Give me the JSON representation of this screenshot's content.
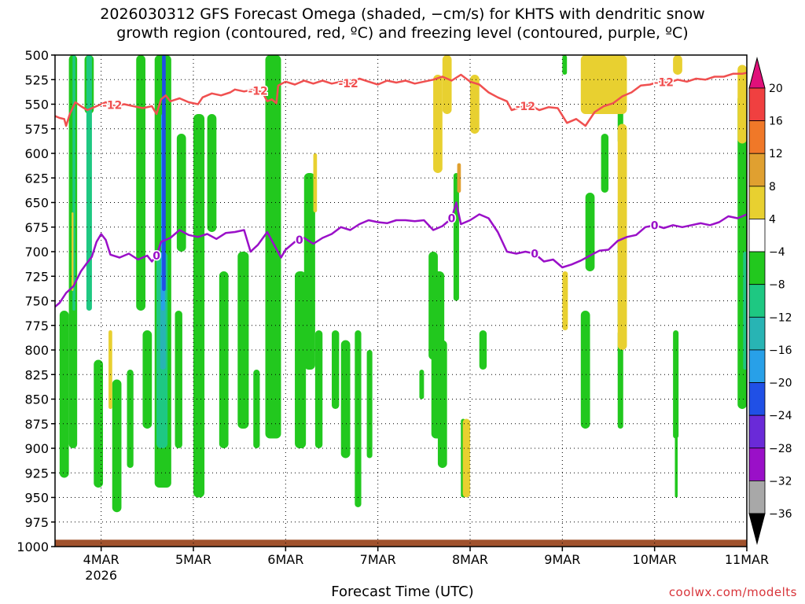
{
  "title_line1": "2026030312 GFS Forecast Omega (shaded, −cm/s) for KHTS with dendritic snow",
  "title_line2": "growth region (contoured, red, ºC) and freezing level (contoured, purple, ºC)",
  "credit": "coolwx.com/modelts",
  "chart_data": {
    "type": "heatmap",
    "title": "2026030312 GFS Forecast Omega (shaded, −cm/s) for KHTS with dendritic snow growth region (contoured, red, ºC) and freezing level (contoured, purple, ºC)",
    "xlabel": "Forecast Time (UTC)",
    "ylabel": "",
    "x_ticks": [
      "4MAR",
      "5MAR",
      "6MAR",
      "7MAR",
      "8MAR",
      "9MAR",
      "10MAR",
      "11MAR"
    ],
    "x_tick_sublabel": "2026",
    "x_range_days": [
      3.5,
      11.0
    ],
    "y_ticks": [
      500,
      525,
      550,
      575,
      600,
      625,
      650,
      675,
      700,
      725,
      750,
      775,
      800,
      825,
      850,
      875,
      900,
      925,
      950,
      975,
      1000
    ],
    "y_range": [
      500,
      1000
    ],
    "y_inverted": true,
    "grid": true,
    "colorbar": {
      "labels": [
        "20",
        "16",
        "12",
        "8",
        "4",
        "−4",
        "−8",
        "−12",
        "−16",
        "−20",
        "−24",
        "−28",
        "−32",
        "−36"
      ],
      "colors": [
        "#f04040",
        "#f07828",
        "#e0a030",
        "#e8d030",
        "#ffffff",
        "#22c81e",
        "#1ec882",
        "#28b4b4",
        "#28a0e8",
        "#2050e6",
        "#6a2ad8",
        "#9a10c8",
        "#a8a8a8"
      ],
      "top_arrow_color": "#e0107a",
      "bottom_arrow_color": "#000000"
    },
    "dgz_label": "-12",
    "dgz_color": "#f05050",
    "freezing_label": "0",
    "freezing_color": "#9a10c8",
    "ground_color": "#a0522d",
    "dgz_line": [
      [
        3.5,
        562
      ],
      [
        3.55,
        564
      ],
      [
        3.6,
        565
      ],
      [
        3.62,
        572
      ],
      [
        3.66,
        560
      ],
      [
        3.72,
        548
      ],
      [
        3.78,
        552
      ],
      [
        3.85,
        556
      ],
      [
        3.95,
        552
      ],
      [
        4.05,
        548
      ],
      [
        4.15,
        552
      ],
      [
        4.25,
        550
      ],
      [
        4.35,
        552
      ],
      [
        4.45,
        554
      ],
      [
        4.55,
        552
      ],
      [
        4.6,
        560
      ],
      [
        4.65,
        545
      ],
      [
        4.7,
        541
      ],
      [
        4.75,
        547
      ],
      [
        4.85,
        544
      ],
      [
        4.95,
        548
      ],
      [
        5.05,
        550
      ],
      [
        5.1,
        543
      ],
      [
        5.2,
        539
      ],
      [
        5.3,
        541
      ],
      [
        5.4,
        538
      ],
      [
        5.45,
        535
      ],
      [
        5.55,
        537
      ],
      [
        5.65,
        535
      ],
      [
        5.75,
        538
      ],
      [
        5.8,
        547
      ],
      [
        5.85,
        545
      ],
      [
        5.9,
        549
      ],
      [
        5.92,
        531
      ],
      [
        6.0,
        527
      ],
      [
        6.1,
        530
      ],
      [
        6.2,
        526
      ],
      [
        6.3,
        529
      ],
      [
        6.4,
        526
      ],
      [
        6.5,
        529
      ],
      [
        6.6,
        527
      ],
      [
        6.7,
        529
      ],
      [
        6.8,
        524
      ],
      [
        6.9,
        527
      ],
      [
        7.0,
        530
      ],
      [
        7.1,
        526
      ],
      [
        7.2,
        528
      ],
      [
        7.3,
        526
      ],
      [
        7.4,
        529
      ],
      [
        7.5,
        527
      ],
      [
        7.6,
        525
      ],
      [
        7.7,
        522
      ],
      [
        7.8,
        526
      ],
      [
        7.9,
        520
      ],
      [
        8.0,
        527
      ],
      [
        8.1,
        530
      ],
      [
        8.2,
        538
      ],
      [
        8.3,
        543
      ],
      [
        8.4,
        547
      ],
      [
        8.45,
        556
      ],
      [
        8.55,
        553
      ],
      [
        8.65,
        551
      ],
      [
        8.75,
        556
      ],
      [
        8.85,
        553
      ],
      [
        8.95,
        554
      ],
      [
        9.05,
        569
      ],
      [
        9.15,
        565
      ],
      [
        9.25,
        572
      ],
      [
        9.35,
        558
      ],
      [
        9.45,
        552
      ],
      [
        9.55,
        549
      ],
      [
        9.65,
        542
      ],
      [
        9.75,
        538
      ],
      [
        9.85,
        531
      ],
      [
        9.95,
        530
      ],
      [
        10.05,
        527
      ],
      [
        10.15,
        528
      ],
      [
        10.25,
        525
      ],
      [
        10.35,
        527
      ],
      [
        10.45,
        524
      ],
      [
        10.55,
        525
      ],
      [
        10.65,
        522
      ],
      [
        10.75,
        522
      ],
      [
        10.85,
        519
      ],
      [
        10.95,
        519
      ],
      [
        11.0,
        518
      ]
    ],
    "freezing_line": [
      [
        3.5,
        756
      ],
      [
        3.55,
        752
      ],
      [
        3.62,
        742
      ],
      [
        3.7,
        735
      ],
      [
        3.78,
        720
      ],
      [
        3.85,
        711
      ],
      [
        3.9,
        705
      ],
      [
        3.95,
        690
      ],
      [
        4.0,
        682
      ],
      [
        4.05,
        688
      ],
      [
        4.1,
        703
      ],
      [
        4.2,
        706
      ],
      [
        4.3,
        702
      ],
      [
        4.4,
        708
      ],
      [
        4.5,
        704
      ],
      [
        4.55,
        710
      ],
      [
        4.6,
        704
      ],
      [
        4.65,
        690
      ],
      [
        4.75,
        686
      ],
      [
        4.85,
        678
      ],
      [
        4.95,
        683
      ],
      [
        5.05,
        685
      ],
      [
        5.15,
        682
      ],
      [
        5.25,
        687
      ],
      [
        5.35,
        681
      ],
      [
        5.45,
        680
      ],
      [
        5.55,
        678
      ],
      [
        5.62,
        700
      ],
      [
        5.7,
        693
      ],
      [
        5.8,
        680
      ],
      [
        5.88,
        694
      ],
      [
        5.95,
        706
      ],
      [
        6.0,
        698
      ],
      [
        6.1,
        690
      ],
      [
        6.2,
        686
      ],
      [
        6.3,
        692
      ],
      [
        6.4,
        686
      ],
      [
        6.5,
        682
      ],
      [
        6.6,
        675
      ],
      [
        6.7,
        678
      ],
      [
        6.8,
        672
      ],
      [
        6.9,
        668
      ],
      [
        7.0,
        670
      ],
      [
        7.1,
        671
      ],
      [
        7.2,
        668
      ],
      [
        7.3,
        668
      ],
      [
        7.4,
        669
      ],
      [
        7.5,
        668
      ],
      [
        7.6,
        678
      ],
      [
        7.7,
        674
      ],
      [
        7.8,
        666
      ],
      [
        7.85,
        650
      ],
      [
        7.9,
        672
      ],
      [
        8.0,
        668
      ],
      [
        8.1,
        662
      ],
      [
        8.2,
        666
      ],
      [
        8.3,
        680
      ],
      [
        8.4,
        700
      ],
      [
        8.5,
        702
      ],
      [
        8.6,
        700
      ],
      [
        8.7,
        702
      ],
      [
        8.8,
        710
      ],
      [
        8.9,
        708
      ],
      [
        9.0,
        716
      ],
      [
        9.1,
        713
      ],
      [
        9.2,
        709
      ],
      [
        9.3,
        704
      ],
      [
        9.4,
        699
      ],
      [
        9.5,
        698
      ],
      [
        9.6,
        689
      ],
      [
        9.7,
        685
      ],
      [
        9.8,
        683
      ],
      [
        9.9,
        675
      ],
      [
        10.0,
        673
      ],
      [
        10.1,
        676
      ],
      [
        10.2,
        673
      ],
      [
        10.3,
        675
      ],
      [
        10.4,
        673
      ],
      [
        10.5,
        671
      ],
      [
        10.6,
        673
      ],
      [
        10.7,
        670
      ],
      [
        10.8,
        664
      ],
      [
        10.9,
        666
      ],
      [
        11.0,
        662
      ]
    ],
    "omega_regions": [
      {
        "level": "-8",
        "x": [
          3.65,
          3.74
        ],
        "p": [
          500,
          900
        ]
      },
      {
        "level": "-12",
        "x": [
          3.69,
          3.72
        ],
        "p": [
          500,
          760
        ]
      },
      {
        "level": "-8",
        "x": [
          3.55,
          3.65
        ],
        "p": [
          760,
          930
        ]
      },
      {
        "level": "-8",
        "x": [
          3.82,
          3.92
        ],
        "p": [
          500,
          560
        ]
      },
      {
        "level": "-12",
        "x": [
          3.84,
          3.9
        ],
        "p": [
          500,
          760
        ]
      },
      {
        "level": "-8",
        "x": [
          3.92,
          4.02
        ],
        "p": [
          810,
          940
        ]
      },
      {
        "level": "-8",
        "x": [
          4.12,
          4.22
        ],
        "p": [
          830,
          965
        ]
      },
      {
        "level": "-8",
        "x": [
          4.28,
          4.35
        ],
        "p": [
          820,
          920
        ]
      },
      {
        "level": "-8",
        "x": [
          4.38,
          4.48
        ],
        "p": [
          500,
          760
        ]
      },
      {
        "level": "-8",
        "x": [
          4.45,
          4.55
        ],
        "p": [
          780,
          880
        ]
      },
      {
        "level": "-8",
        "x": [
          4.58,
          4.76
        ],
        "p": [
          500,
          940
        ]
      },
      {
        "level": "-12",
        "x": [
          4.6,
          4.72
        ],
        "p": [
          700,
          900
        ]
      },
      {
        "level": "-16",
        "x": [
          4.64,
          4.7
        ],
        "p": [
          720,
          820
        ]
      },
      {
        "level": "-20",
        "x": [
          4.65,
          4.69
        ],
        "p": [
          560,
          760
        ]
      },
      {
        "level": "-24",
        "x": [
          4.66,
          4.7
        ],
        "p": [
          500,
          740
        ]
      },
      {
        "level": "-8",
        "x": [
          4.82,
          4.92
        ],
        "p": [
          580,
          700
        ]
      },
      {
        "level": "-8",
        "x": [
          4.8,
          4.88
        ],
        "p": [
          760,
          900
        ]
      },
      {
        "level": "-8",
        "x": [
          5.0,
          5.12
        ],
        "p": [
          560,
          950
        ]
      },
      {
        "level": "-8",
        "x": [
          5.15,
          5.25
        ],
        "p": [
          560,
          680
        ]
      },
      {
        "level": "-8",
        "x": [
          5.28,
          5.38
        ],
        "p": [
          720,
          900
        ]
      },
      {
        "level": "-8",
        "x": [
          5.48,
          5.6
        ],
        "p": [
          700,
          880
        ]
      },
      {
        "level": "-8",
        "x": [
          5.65,
          5.72
        ],
        "p": [
          820,
          900
        ]
      },
      {
        "level": "-8",
        "x": [
          5.78,
          5.95
        ],
        "p": [
          500,
          890
        ]
      },
      {
        "level": "-8",
        "x": [
          6.1,
          6.22
        ],
        "p": [
          720,
          900
        ]
      },
      {
        "level": "-8",
        "x": [
          6.2,
          6.32
        ],
        "p": [
          620,
          820
        ]
      },
      {
        "level": "-8",
        "x": [
          6.32,
          6.4
        ],
        "p": [
          780,
          900
        ]
      },
      {
        "level": "-8",
        "x": [
          6.5,
          6.58
        ],
        "p": [
          780,
          860
        ]
      },
      {
        "level": "-8",
        "x": [
          6.6,
          6.7
        ],
        "p": [
          790,
          910
        ]
      },
      {
        "level": "-8",
        "x": [
          6.75,
          6.82
        ],
        "p": [
          780,
          960
        ]
      },
      {
        "level": "-8",
        "x": [
          6.88,
          6.94
        ],
        "p": [
          800,
          910
        ]
      },
      {
        "level": "-8",
        "x": [
          7.45,
          7.5
        ],
        "p": [
          820,
          850
        ]
      },
      {
        "level": "-8",
        "x": [
          7.55,
          7.65
        ],
        "p": [
          700,
          810
        ]
      },
      {
        "level": "-8",
        "x": [
          7.58,
          7.72
        ],
        "p": [
          720,
          890
        ]
      },
      {
        "level": "-8",
        "x": [
          7.65,
          7.75
        ],
        "p": [
          790,
          920
        ]
      },
      {
        "level": "-8",
        "x": [
          7.82,
          7.88
        ],
        "p": [
          620,
          750
        ]
      },
      {
        "level": "-8",
        "x": [
          7.9,
          7.95
        ],
        "p": [
          870,
          950
        ]
      },
      {
        "level": "-8",
        "x": [
          8.1,
          8.18
        ],
        "p": [
          780,
          820
        ]
      },
      {
        "level": "-8",
        "x": [
          9.0,
          9.05
        ],
        "p": [
          500,
          520
        ]
      },
      {
        "level": "-8",
        "x": [
          9.2,
          9.3
        ],
        "p": [
          760,
          880
        ]
      },
      {
        "level": "-8",
        "x": [
          9.25,
          9.35
        ],
        "p": [
          640,
          720
        ]
      },
      {
        "level": "-8",
        "x": [
          9.42,
          9.5
        ],
        "p": [
          580,
          640
        ]
      },
      {
        "level": "-8",
        "x": [
          9.6,
          9.66
        ],
        "p": [
          530,
          590
        ]
      },
      {
        "level": "-8",
        "x": [
          9.6,
          9.68
        ],
        "p": [
          650,
          780
        ]
      },
      {
        "level": "-8",
        "x": [
          9.6,
          9.66
        ],
        "p": [
          780,
          880
        ]
      },
      {
        "level": "-8",
        "x": [
          10.2,
          10.26
        ],
        "p": [
          780,
          890
        ]
      },
      {
        "level": "-8",
        "x": [
          10.22,
          10.25
        ],
        "p": [
          870,
          950
        ]
      },
      {
        "level": "-8",
        "x": [
          10.9,
          11.0
        ],
        "p": [
          540,
          860
        ]
      },
      {
        "level": "-12",
        "x": [
          10.96,
          11.0
        ],
        "p": [
          700,
          820
        ]
      },
      {
        "level": "4",
        "x": [
          3.68,
          3.7
        ],
        "p": [
          660,
          740
        ]
      },
      {
        "level": "4",
        "x": [
          4.08,
          4.12
        ],
        "p": [
          780,
          860
        ]
      },
      {
        "level": "4",
        "x": [
          6.3,
          6.34
        ],
        "p": [
          600,
          660
        ]
      },
      {
        "level": "4",
        "x": [
          7.6,
          7.7
        ],
        "p": [
          520,
          620
        ]
      },
      {
        "level": "4",
        "x": [
          7.7,
          7.8
        ],
        "p": [
          500,
          560
        ]
      },
      {
        "level": "4",
        "x": [
          8.0,
          8.1
        ],
        "p": [
          520,
          580
        ]
      },
      {
        "level": "4",
        "x": [
          7.92,
          8.0
        ],
        "p": [
          870,
          950
        ]
      },
      {
        "level": "4",
        "x": [
          9.0,
          9.06
        ],
        "p": [
          720,
          780
        ]
      },
      {
        "level": "4",
        "x": [
          9.2,
          9.7
        ],
        "p": [
          500,
          560
        ]
      },
      {
        "level": "4",
        "x": [
          9.6,
          9.7
        ],
        "p": [
          570,
          800
        ]
      },
      {
        "level": "4",
        "x": [
          10.2,
          10.3
        ],
        "p": [
          500,
          520
        ]
      },
      {
        "level": "4",
        "x": [
          10.9,
          11.0
        ],
        "p": [
          510,
          590
        ]
      },
      {
        "level": "8",
        "x": [
          7.86,
          7.9
        ],
        "p": [
          610,
          640
        ]
      }
    ]
  }
}
